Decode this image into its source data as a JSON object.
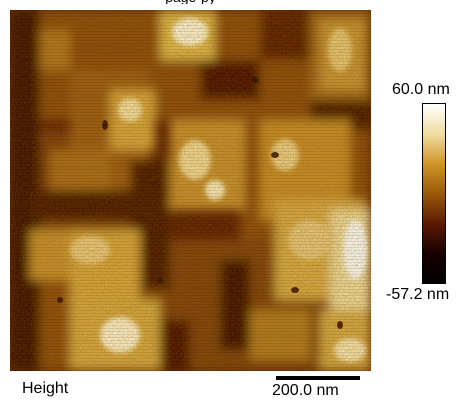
{
  "top_caption": "page-py",
  "image_label": "Height",
  "scale_bar_label": "200.0 nm",
  "colorbar": {
    "max_label": "60.0 nm",
    "min_label": "-57.2 nm",
    "colors": [
      "#ffffff",
      "#f0dca0",
      "#d0962a",
      "#9a5a0a",
      "#5a1a02",
      "#1a0000",
      "#000000"
    ]
  }
}
